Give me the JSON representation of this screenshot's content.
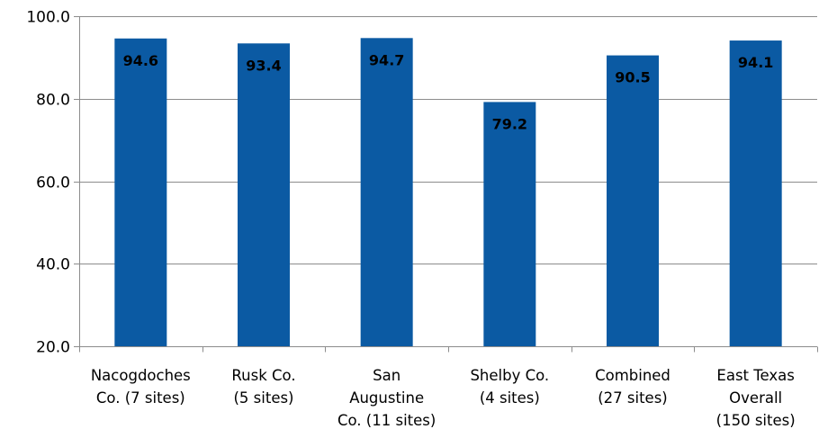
{
  "chart_data": {
    "type": "bar",
    "categories": [
      [
        "Nacogdoches",
        "Co. (7 sites)"
      ],
      [
        "Rusk Co.",
        "(5 sites)"
      ],
      [
        "San",
        "Augustine",
        "Co. (11 sites)"
      ],
      [
        "Shelby Co.",
        "(4 sites)"
      ],
      [
        "Combined",
        "(27 sites)"
      ],
      [
        "East Texas",
        "Overall",
        "(150 sites)"
      ]
    ],
    "values": [
      94.6,
      93.4,
      94.7,
      79.2,
      90.5,
      94.1
    ],
    "data_labels": [
      "94.6",
      "93.4",
      "94.7",
      "79.2",
      "90.5",
      "94.1"
    ],
    "ylim": [
      20.0,
      100.0
    ],
    "y_ticks": [
      20.0,
      40.0,
      60.0,
      80.0,
      100.0
    ],
    "y_tick_labels": [
      "20.0",
      "40.0",
      "60.0",
      "80.0",
      "100.0"
    ],
    "title": "",
    "xlabel": "",
    "ylabel": "",
    "grid": true,
    "legend": "none",
    "bar_color": "#0b5aa3",
    "grid_color": "#8c8c8c",
    "axis_color": "#8c8c8c"
  }
}
